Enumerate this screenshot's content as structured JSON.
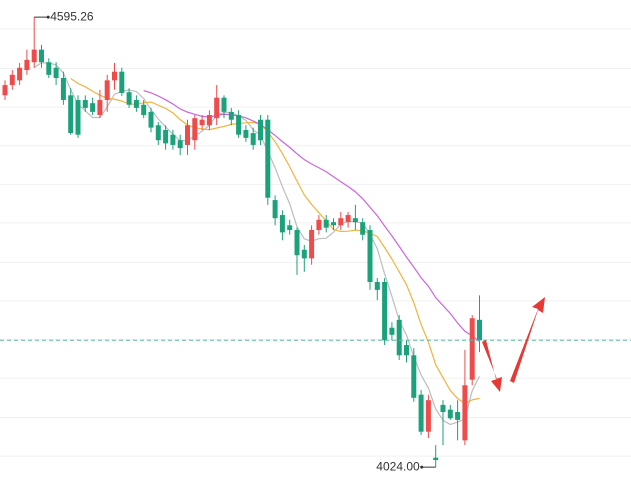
{
  "chart_data": {
    "type": "candlestick",
    "open": [
      4496,
      4509,
      4515,
      4528,
      4538,
      4554,
      4538,
      4531,
      4518,
      4496,
      4490,
      4490,
      4486,
      4471,
      4490,
      4515,
      4526,
      4500,
      4490,
      4484,
      4475,
      4458,
      4452,
      4446,
      4439,
      4433,
      4439,
      4458,
      4458,
      4467,
      4493,
      4475,
      4471,
      4452,
      4448,
      4465,
      4465,
      4363,
      4344,
      4331,
      4325,
      4300,
      4289,
      4325,
      4338,
      4335,
      4331,
      4335,
      4340,
      4335,
      4325,
      4259,
      4259,
      4201,
      4211,
      4179,
      4166,
      4116,
      4069,
      4036,
      4103,
      4097,
      4094,
      4058,
      4135,
      4211
    ],
    "high": [
      4515,
      4528,
      4537,
      4554,
      4595.26,
      4560,
      4543,
      4538,
      4526,
      4505,
      4496,
      4496,
      4493,
      4503,
      4522,
      4537,
      4531,
      4505,
      4496,
      4490,
      4480,
      4462,
      4458,
      4452,
      4446,
      4465,
      4471,
      4471,
      4477,
      4509,
      4496,
      4480,
      4477,
      4458,
      4455,
      4471,
      4471,
      4369,
      4350,
      4338,
      4328,
      4306,
      4331,
      4344,
      4344,
      4340,
      4348,
      4348,
      4357,
      4340,
      4331,
      4264,
      4264,
      4208,
      4217,
      4185,
      4175,
      4122,
      4116,
      4052,
      4109,
      4103,
      4109,
      4173,
      4217,
      4242
    ],
    "low": [
      4490,
      4503,
      4509,
      4522,
      4531,
      4531,
      4518,
      4509,
      4484,
      4446,
      4442,
      4475,
      4471,
      4467,
      4475,
      4503,
      4495,
      4480,
      4475,
      4467,
      4449,
      4433,
      4427,
      4427,
      4420,
      4420,
      4427,
      4452,
      4452,
      4458,
      4467,
      4458,
      4442,
      4437,
      4427,
      4433,
      4357,
      4331,
      4312,
      4319,
      4268,
      4272,
      4281,
      4319,
      4322,
      4325,
      4325,
      4328,
      4325,
      4312,
      4249,
      4236,
      4179,
      4185,
      4160,
      4157,
      4107,
      4065,
      4061,
      4024.0,
      4052,
      4084,
      4058,
      4052,
      4128,
      4170
    ],
    "close": [
      4509,
      4522,
      4531,
      4541,
      4554,
      4538,
      4522,
      4518,
      4490,
      4448,
      4446,
      4480,
      4475,
      4490,
      4515,
      4526,
      4499,
      4484,
      4480,
      4471,
      4455,
      4439,
      4435,
      4433,
      4429,
      4458,
      4467,
      4465,
      4471,
      4493,
      4475,
      4465,
      4446,
      4442,
      4433,
      4439,
      4366,
      4340,
      4322,
      4325,
      4293,
      4289,
      4325,
      4338,
      4328,
      4331,
      4340,
      4344,
      4335,
      4319,
      4259,
      4249,
      4185,
      4192,
      4166,
      4166,
      4112,
      4069,
      4109,
      4033,
      4094,
      4086,
      4084,
      4128,
      4213,
      4185
    ],
    "up_color": "#ef4b4b",
    "down_color": "#1aa37a",
    "moving_averages": [
      {
        "period": 5,
        "color": "#bdbdbd"
      },
      {
        "period": 10,
        "color": "#f2b33d"
      },
      {
        "period": 20,
        "color": "#cc66dd"
      }
    ],
    "ylim": [
      4006.4,
      4617
    ],
    "ygrid": [
      4038,
      4087,
      4137,
      4186,
      4235,
      4284,
      4334,
      4383,
      4432,
      4481,
      4530,
      4580
    ],
    "annotations": [
      {
        "value": 4595.26,
        "label": "4595.26"
      },
      {
        "value": 4024.0,
        "label": "4024.00"
      }
    ]
  }
}
